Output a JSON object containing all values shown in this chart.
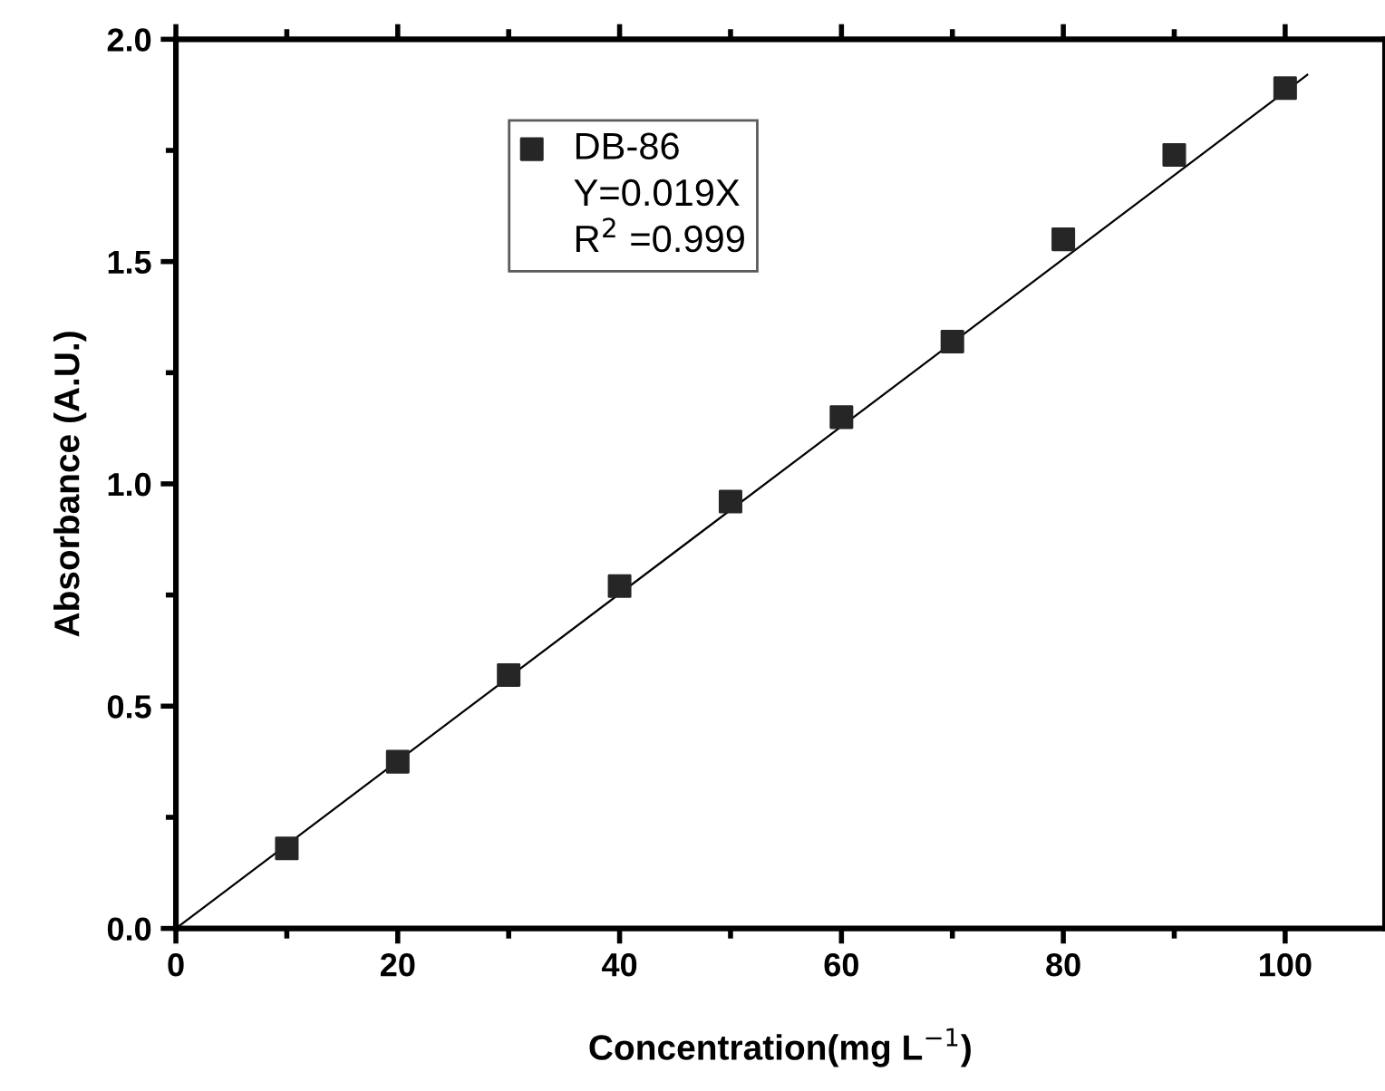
{
  "chart_data": {
    "type": "scatter",
    "xlabel": "Concentration(mg L$^{−1}$)",
    "ylabel": "Absorbance (A.U.)",
    "x": [
      10,
      20,
      30,
      40,
      50,
      60,
      70,
      80,
      90,
      100
    ],
    "series": [
      {
        "name": "DB-86",
        "color": "#262626",
        "marker": "square",
        "values": [
          0.18,
          0.375,
          0.57,
          0.77,
          0.96,
          1.15,
          1.32,
          1.55,
          1.74,
          1.89
        ]
      },
      {
        "type": "line",
        "color": "#000000",
        "line_style": "solid",
        "x": [
          0,
          102
        ],
        "values": [
          0,
          1.92
        ]
      }
    ],
    "annotations": [
      "Y=0.019X",
      "R$^{2}$ =0.999"
    ],
    "xlim": [
      0,
      109
    ],
    "ylim": [
      0,
      2.0
    ],
    "xticks": [
      0,
      20,
      40,
      60,
      80,
      100
    ],
    "yticks": [
      {
        "value": 0,
        "label": "0.0"
      },
      0.5,
      {
        "value": 1,
        "label": "1.0"
      },
      1.5,
      {
        "value": 2,
        "label": "2.0"
      }
    ],
    "grid": false,
    "legend": "top left"
  }
}
